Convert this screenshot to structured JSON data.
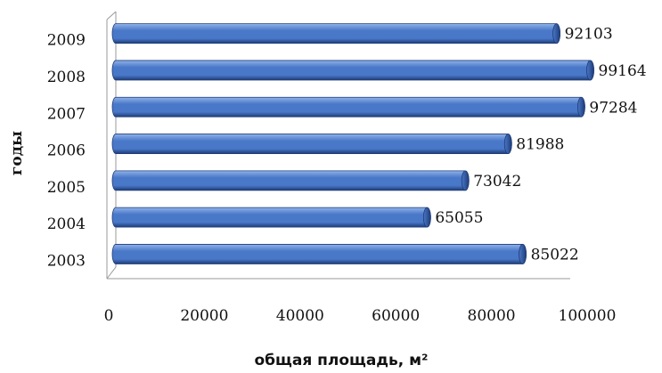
{
  "chart_data": {
    "type": "bar",
    "orientation": "horizontal",
    "categories": [
      "2003",
      "2004",
      "2005",
      "2006",
      "2007",
      "2008",
      "2009"
    ],
    "values": [
      85022,
      65055,
      73042,
      81988,
      97284,
      99164,
      92103
    ],
    "data_labels": [
      "85022",
      "65055",
      "73042",
      "81988",
      "97284",
      "99164",
      "92103"
    ],
    "xlabel": "общая площадь, м²",
    "ylabel": "годы",
    "xlim": [
      0,
      100000
    ],
    "xticks": [
      "0",
      "20000",
      "40000",
      "60000",
      "80000",
      "100000"
    ],
    "grid": false,
    "bar_color": "#4a78c8",
    "bar_highlight": "#8fb2ea",
    "bar_shadow": "#1e3c78"
  }
}
